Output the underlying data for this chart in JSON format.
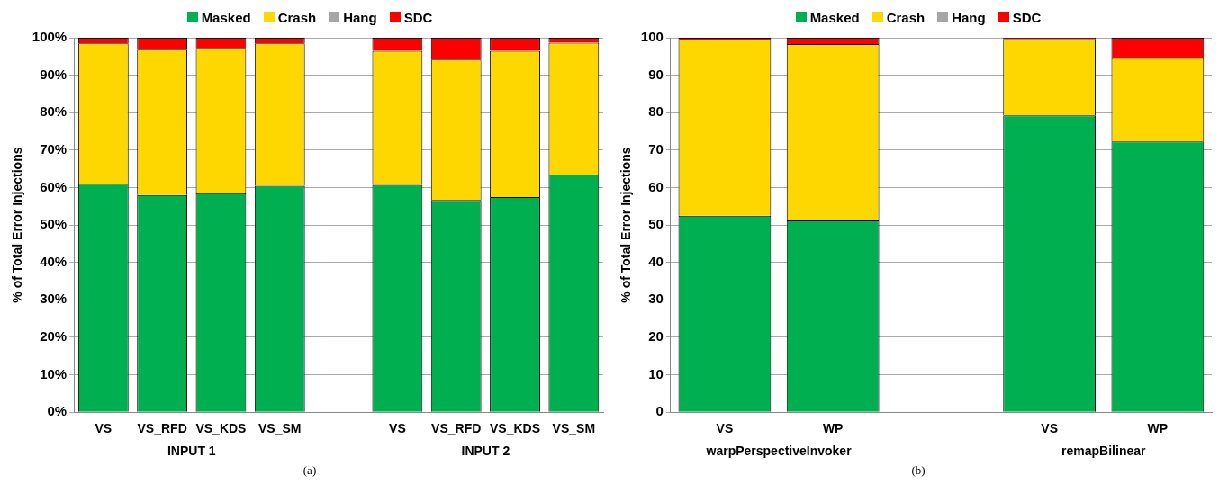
{
  "chart_data": [
    {
      "type": "bar",
      "stacked": true,
      "ylabel": "% of Total Error Injections",
      "categories": [
        "VS",
        "VS_RFD",
        "VS_KDS",
        "VS_SM",
        null,
        "VS",
        "VS_RFD",
        "VS_KDS",
        "VS_SM"
      ],
      "series": [
        {
          "name": "Masked",
          "color": "#00b050",
          "values": [
            61,
            58,
            58.5,
            60.5,
            null,
            60.7,
            56.7,
            57.5,
            63.5
          ]
        },
        {
          "name": "Crash",
          "color": "#ffd700",
          "values": [
            37.5,
            38.8,
            38.8,
            38,
            null,
            35.8,
            37.5,
            39,
            35.2
          ]
        },
        {
          "name": "Hang",
          "color": "#a6a6a6",
          "values": [
            0,
            0,
            0,
            0,
            null,
            0,
            0,
            0,
            0
          ]
        },
        {
          "name": "SDC",
          "color": "#ff0000",
          "values": [
            1.5,
            3.2,
            2.7,
            1.5,
            null,
            3.5,
            5.8,
            3.5,
            1.3
          ]
        }
      ],
      "ylim": [
        0,
        100
      ],
      "yticks": [
        {
          "value": 0,
          "label": "0%"
        },
        {
          "value": 10,
          "label": "10%"
        },
        {
          "value": 20,
          "label": "20%"
        },
        {
          "value": 30,
          "label": "30%"
        },
        {
          "value": 40,
          "label": "40%"
        },
        {
          "value": 50,
          "label": "50%"
        },
        {
          "value": 60,
          "label": "60%"
        },
        {
          "value": 70,
          "label": "70%"
        },
        {
          "value": 80,
          "label": "80%"
        },
        {
          "value": 90,
          "label": "90%"
        },
        {
          "value": 100,
          "label": "100%"
        }
      ],
      "grid": "y",
      "legend": "top",
      "annotations": [
        "INPUT 1",
        "INPUT 2",
        "(a)"
      ]
    },
    {
      "type": "bar",
      "stacked": true,
      "ylabel": "% of Total Error Injections",
      "categories": [
        "VS",
        "WP",
        null,
        "VS",
        "WP"
      ],
      "series": [
        {
          "name": "Masked",
          "color": "#00b050",
          "values": [
            52.5,
            51.2,
            null,
            79.3,
            72.3
          ]
        },
        {
          "name": "Crash",
          "color": "#ffd700",
          "values": [
            47,
            47.1,
            null,
            20.3,
            22.3
          ]
        },
        {
          "name": "Hang",
          "color": "#a6a6a6",
          "values": [
            0,
            0,
            null,
            0,
            0
          ]
        },
        {
          "name": "SDC",
          "color": "#ff0000",
          "values": [
            0.5,
            1.7,
            null,
            0.4,
            5.4
          ]
        }
      ],
      "ylim": [
        0,
        100
      ],
      "yticks": [
        0,
        10,
        20,
        30,
        40,
        50,
        60,
        70,
        80,
        90,
        100
      ],
      "grid": "y",
      "legend": "top",
      "annotations": [
        "warpPerspectiveInvoker",
        "remapBilinear",
        "(b)"
      ]
    }
  ]
}
